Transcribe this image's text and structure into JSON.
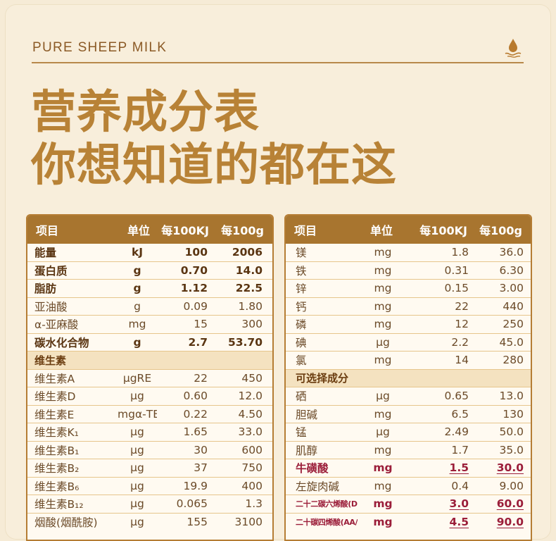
{
  "header": {
    "brand": "PURE SHEEP MILK",
    "drop_icon": "milk-drop-icon",
    "title_line1": "营养成分表",
    "title_line2": "你想知道的都在这"
  },
  "colors": {
    "gold": "#b88236",
    "header_bg": "#a8752f",
    "highlight": "#9b1e3a",
    "background": "#f6ebd6"
  },
  "left_table": {
    "headers": [
      "项目",
      "单位",
      "每100KJ",
      "每100g"
    ],
    "rows": [
      {
        "name": "能量",
        "unit": "kJ",
        "per_kj": "100",
        "per_g": "2006",
        "style": "bold"
      },
      {
        "name": "蛋白质",
        "unit": "g",
        "per_kj": "0.70",
        "per_g": "14.0",
        "style": "bold"
      },
      {
        "name": "脂肪",
        "unit": "g",
        "per_kj": "1.12",
        "per_g": "22.5",
        "style": "bold"
      },
      {
        "name": "亚油酸",
        "unit": "g",
        "per_kj": "0.09",
        "per_g": "1.80",
        "style": ""
      },
      {
        "name": "α-亚麻酸",
        "unit": "mg",
        "per_kj": "15",
        "per_g": "300",
        "style": ""
      },
      {
        "name": "碳水化合物",
        "unit": "g",
        "per_kj": "2.7",
        "per_g": "53.70",
        "style": "bold"
      },
      {
        "name": "维生素",
        "unit": "",
        "per_kj": "",
        "per_g": "",
        "style": "section"
      },
      {
        "name": "维生素A",
        "unit": "μgRE",
        "per_kj": "22",
        "per_g": "450",
        "style": ""
      },
      {
        "name": "维生素D",
        "unit": "μg",
        "per_kj": "0.60",
        "per_g": "12.0",
        "style": ""
      },
      {
        "name": "维生素E",
        "unit": "mgα-TE",
        "per_kj": "0.22",
        "per_g": "4.50",
        "style": ""
      },
      {
        "name": "维生素K₁",
        "unit": "μg",
        "per_kj": "1.65",
        "per_g": "33.0",
        "style": ""
      },
      {
        "name": "维生素B₁",
        "unit": "μg",
        "per_kj": "30",
        "per_g": "600",
        "style": ""
      },
      {
        "name": "维生素B₂",
        "unit": "μg",
        "per_kj": "37",
        "per_g": "750",
        "style": ""
      },
      {
        "name": "维生素B₆",
        "unit": "μg",
        "per_kj": "19.9",
        "per_g": "400",
        "style": ""
      },
      {
        "name": "维生素B₁₂",
        "unit": "μg",
        "per_kj": "0.065",
        "per_g": "1.3",
        "style": ""
      },
      {
        "name": "烟酸(烟酰胺)",
        "unit": "μg",
        "per_kj": "155",
        "per_g": "3100",
        "style": ""
      }
    ]
  },
  "right_table": {
    "headers": [
      "项目",
      "单位",
      "每100KJ",
      "每100g"
    ],
    "rows": [
      {
        "name": "镁",
        "unit": "mg",
        "per_kj": "1.8",
        "per_g": "36.0",
        "style": ""
      },
      {
        "name": "铁",
        "unit": "mg",
        "per_kj": "0.31",
        "per_g": "6.30",
        "style": ""
      },
      {
        "name": "锌",
        "unit": "mg",
        "per_kj": "0.15",
        "per_g": "3.00",
        "style": ""
      },
      {
        "name": "钙",
        "unit": "mg",
        "per_kj": "22",
        "per_g": "440",
        "style": ""
      },
      {
        "name": "磷",
        "unit": "mg",
        "per_kj": "12",
        "per_g": "250",
        "style": ""
      },
      {
        "name": "碘",
        "unit": "μg",
        "per_kj": "2.2",
        "per_g": "45.0",
        "style": ""
      },
      {
        "name": "氯",
        "unit": "mg",
        "per_kj": "14",
        "per_g": "280",
        "style": ""
      },
      {
        "name": "可选择成分",
        "unit": "",
        "per_kj": "",
        "per_g": "",
        "style": "section"
      },
      {
        "name": "硒",
        "unit": "μg",
        "per_kj": "0.65",
        "per_g": "13.0",
        "style": ""
      },
      {
        "name": "胆碱",
        "unit": "mg",
        "per_kj": "6.5",
        "per_g": "130",
        "style": ""
      },
      {
        "name": "锰",
        "unit": "μg",
        "per_kj": "2.49",
        "per_g": "50.0",
        "style": ""
      },
      {
        "name": "肌醇",
        "unit": "mg",
        "per_kj": "1.7",
        "per_g": "35.0",
        "style": ""
      },
      {
        "name": "牛磺酸",
        "unit": "mg",
        "per_kj": "1.5",
        "per_g": "30.0",
        "style": "hl"
      },
      {
        "name": "左旋肉碱",
        "unit": "mg",
        "per_kj": "0.4",
        "per_g": "9.00",
        "style": ""
      },
      {
        "name": "二十二碳六烯酸(DHA)",
        "unit": "mg",
        "per_kj": "3.0",
        "per_g": "60.0",
        "style": "hl small"
      },
      {
        "name": "二十碳四烯酸(AA/ARA)",
        "unit": "mg",
        "per_kj": "4.5",
        "per_g": "90.0",
        "style": "hl small"
      }
    ]
  }
}
